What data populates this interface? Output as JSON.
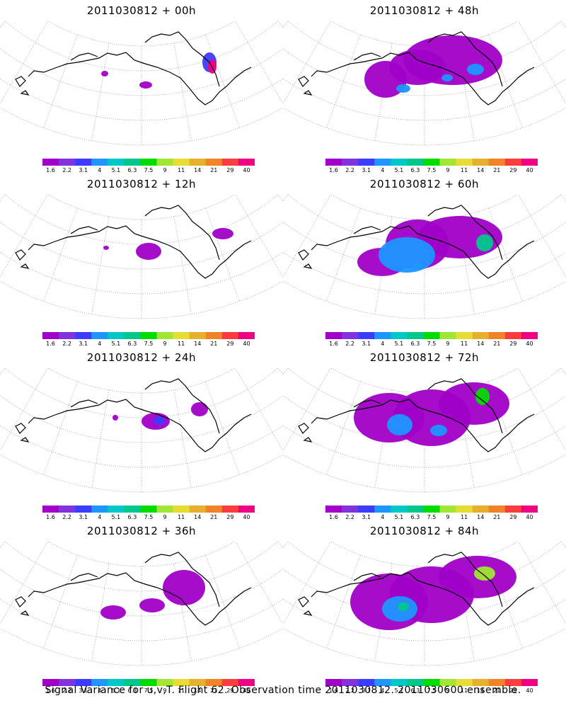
{
  "footer": "Signal Variance for u,v,T. Flight 62. Observation time 2011030812. 2011030600 ensemble.",
  "colorbar": {
    "labels": [
      "1.6",
      "2.2",
      "3.1",
      "4",
      "5.1",
      "6.3",
      "7.5",
      "9",
      "11",
      "14",
      "21",
      "29",
      "40"
    ],
    "colors": [
      "#a000c8",
      "#8232dc",
      "#3c3cff",
      "#1e96ff",
      "#00c8c8",
      "#00c88c",
      "#00dc00",
      "#a0e632",
      "#e6dc32",
      "#e6af2d",
      "#f08228",
      "#fa3c3c",
      "#f00082"
    ]
  },
  "panels": [
    {
      "title": "2011030812 + 00h"
    },
    {
      "title": "2011030812 + 48h"
    },
    {
      "title": "2011030812 + 12h"
    },
    {
      "title": "2011030812 + 60h"
    },
    {
      "title": "2011030812 + 24h"
    },
    {
      "title": "2011030812 + 72h"
    },
    {
      "title": "2011030812 + 36h"
    },
    {
      "title": "2011030812 + 84h"
    }
  ]
}
